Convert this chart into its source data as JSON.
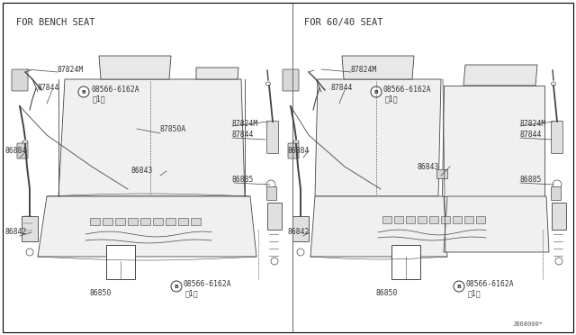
{
  "bg": "#ffffff",
  "lc": "#444444",
  "tc": "#333333",
  "left_title": "FOR BENCH SEAT",
  "right_title": "FOR 60/40 SEAT",
  "ref": "J868000*",
  "fs_title": 7.5,
  "fs_label": 5.8,
  "fs_ref": 5.0,
  "divider": 0.508
}
